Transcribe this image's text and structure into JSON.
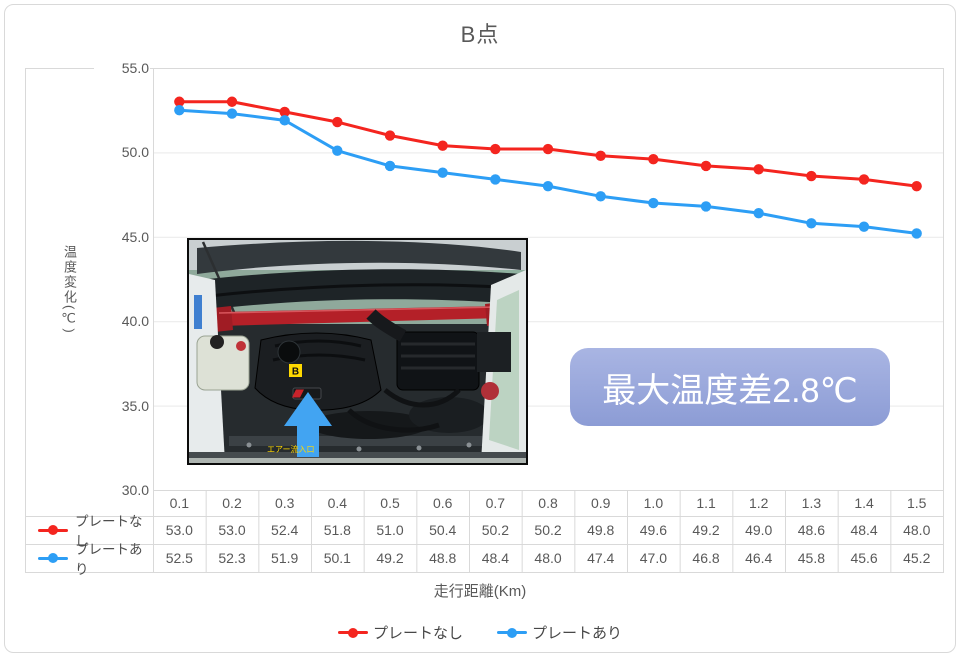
{
  "title": "B点",
  "y_axis": {
    "title": "温度変化(℃)",
    "ticks": [
      "55.0",
      "50.0",
      "45.0",
      "40.0",
      "35.0",
      "30.0"
    ]
  },
  "x_axis": {
    "title": "走行距離(Km)"
  },
  "annotation": {
    "text": "最大温度差2.8℃"
  },
  "photo": {
    "label": "B",
    "caption": "エアー流入口"
  },
  "colors": {
    "border": "#d9d9d9",
    "gridline": "#e9e9e9",
    "axis_text": "#595959",
    "annotation_top": "#a9b5e3",
    "annotation_bottom": "#8c9cd5",
    "annotation_text": "#ffffff",
    "arrow_blue": "#42a4f2",
    "caption_yellow": "#ffd800"
  },
  "chart_data": {
    "type": "line",
    "title": "B点",
    "xlabel": "走行距離(Km)",
    "ylabel": "温度変化(℃)",
    "categories": [
      "0.1",
      "0.2",
      "0.3",
      "0.4",
      "0.5",
      "0.6",
      "0.7",
      "0.8",
      "0.9",
      "1.0",
      "1.1",
      "1.2",
      "1.3",
      "1.4",
      "1.5"
    ],
    "series": [
      {
        "name": "プレートなし",
        "color": "#f4251f",
        "values": [
          53.0,
          53.0,
          52.4,
          51.8,
          51.0,
          50.4,
          50.2,
          50.2,
          49.8,
          49.6,
          49.2,
          49.0,
          48.6,
          48.4,
          48.0
        ]
      },
      {
        "name": "プレートあり",
        "color": "#2d9ef5",
        "values": [
          52.5,
          52.3,
          51.9,
          50.1,
          49.2,
          48.8,
          48.4,
          48.0,
          47.4,
          47.0,
          46.8,
          46.4,
          45.8,
          45.6,
          45.2
        ]
      }
    ],
    "ylim": [
      30.0,
      55.0
    ],
    "ytick_step": 5.0,
    "grid": "horizontal",
    "legend_position": "bottom",
    "data_table_shown": true,
    "max_temperature_difference_c": 2.8
  }
}
